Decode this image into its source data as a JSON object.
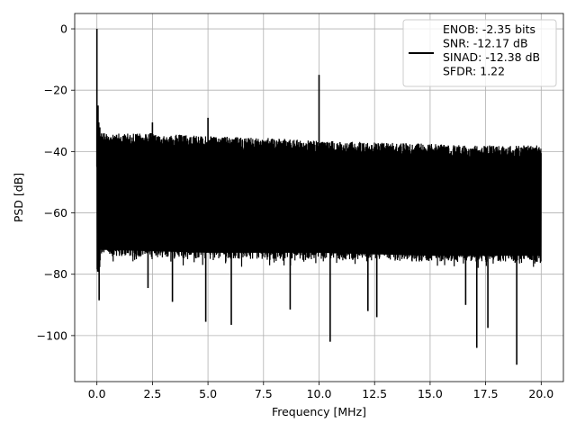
{
  "chart_data": {
    "type": "line",
    "xlabel": "Frequency [MHz]",
    "ylabel": "PSD [dB]",
    "xlim": [
      -1.0,
      21.0
    ],
    "ylim": [
      -115,
      5
    ],
    "xticks": [
      0.0,
      2.5,
      5.0,
      7.5,
      10.0,
      12.5,
      15.0,
      17.5,
      20.0
    ],
    "xtick_labels": [
      "0.0",
      "2.5",
      "5.0",
      "7.5",
      "10.0",
      "12.5",
      "15.0",
      "17.5",
      "20.0"
    ],
    "yticks": [
      0,
      -20,
      -40,
      -60,
      -80,
      -100
    ],
    "ytick_labels": [
      "0",
      "−20",
      "−40",
      "−60",
      "−80",
      "−100"
    ],
    "grid": true,
    "legend_position": "top-right",
    "series": [
      {
        "color": "#000000",
        "noise_floor_upper_envelope": [
          [
            0.0,
            -34
          ],
          [
            2.5,
            -34
          ],
          [
            5.0,
            -35
          ],
          [
            7.5,
            -35.5
          ],
          [
            10.0,
            -36.5
          ],
          [
            12.5,
            -37
          ],
          [
            15.0,
            -37.5
          ],
          [
            17.5,
            -38
          ],
          [
            20.0,
            -38
          ]
        ],
        "noise_floor_lower_envelope": [
          [
            0.0,
            -80
          ],
          [
            5.0,
            -81
          ],
          [
            10.0,
            -81
          ],
          [
            15.0,
            -82
          ],
          [
            20.0,
            -82
          ]
        ],
        "spurs": [
          {
            "x": 0.0,
            "y": 0
          },
          {
            "x": 0.05,
            "y": -25
          },
          {
            "x": 2.5,
            "y": -30.5
          },
          {
            "x": 5.0,
            "y": -29
          },
          {
            "x": 10.0,
            "y": -15
          }
        ],
        "dips": [
          {
            "x": 0.1,
            "y": -88.5
          },
          {
            "x": 2.3,
            "y": -84.5
          },
          {
            "x": 3.4,
            "y": -89
          },
          {
            "x": 4.9,
            "y": -95.5
          },
          {
            "x": 6.05,
            "y": -96.5
          },
          {
            "x": 8.7,
            "y": -91.5
          },
          {
            "x": 10.5,
            "y": -102
          },
          {
            "x": 12.2,
            "y": -92
          },
          {
            "x": 12.6,
            "y": -94
          },
          {
            "x": 17.1,
            "y": -104
          },
          {
            "x": 17.6,
            "y": -97.5
          },
          {
            "x": 18.9,
            "y": -109.5
          },
          {
            "x": 16.6,
            "y": -90
          }
        ]
      }
    ],
    "legend": [
      "ENOB: -2.35 bits",
      "SNR: -12.17 dB",
      "SINAD: -12.38 dB",
      "SFDR: 1.22"
    ]
  }
}
